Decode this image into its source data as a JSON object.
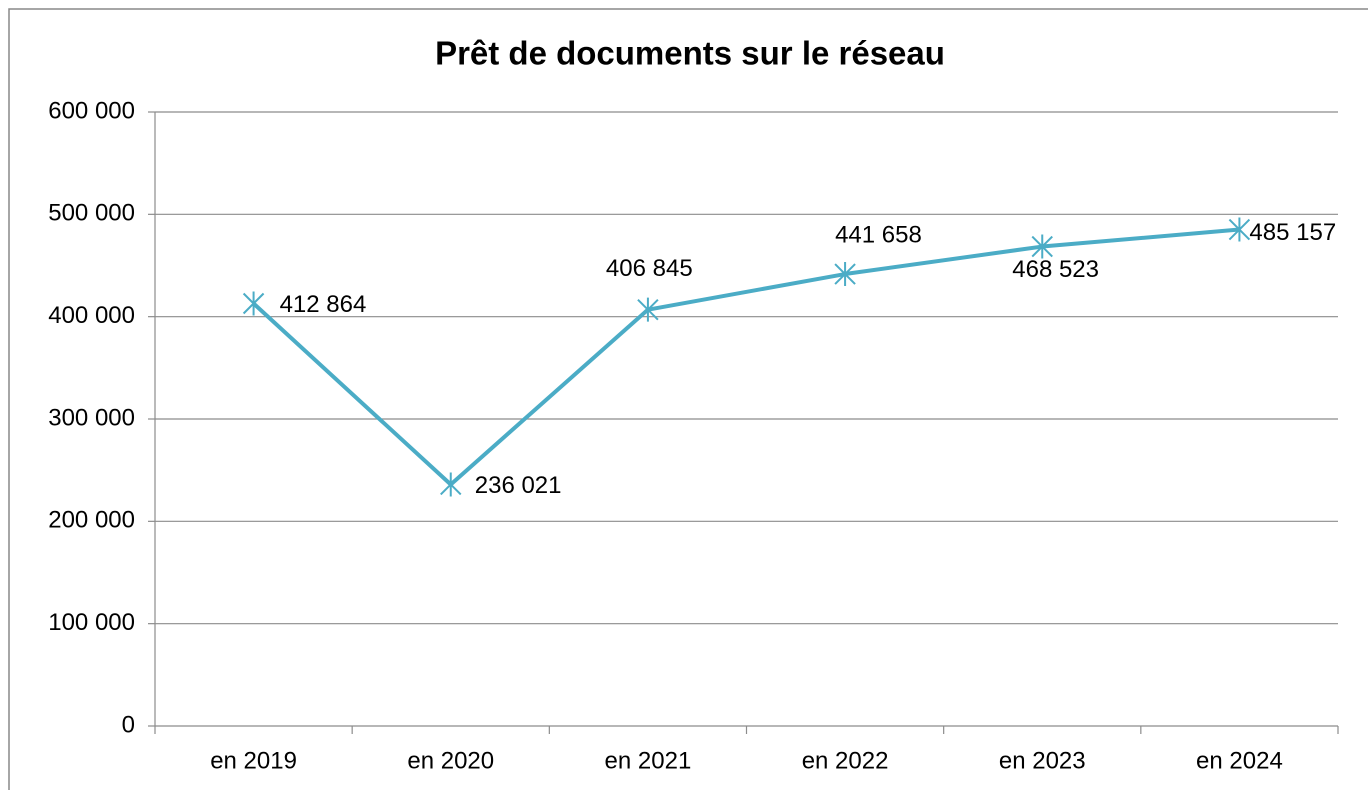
{
  "chart_data": {
    "type": "line",
    "title": "Prêt de documents sur le réseau",
    "categories": [
      "en 2019",
      "en 2020",
      "en 2021",
      "en 2022",
      "en 2023",
      "en 2024"
    ],
    "series": [
      {
        "name": "Prêt de documents",
        "color": "#4bacc6",
        "values": [
          412864,
          236021,
          406845,
          441658,
          468523,
          485157
        ],
        "value_labels": [
          "412 864",
          "236 021",
          "406 845",
          "441 658",
          "468 523",
          "485 157"
        ]
      }
    ],
    "ylim": [
      0,
      600000
    ],
    "yticks": [
      0,
      {
        "value": 100000,
        "label": "100 000"
      },
      {
        "value": 200000,
        "label": "200 000"
      },
      {
        "value": 300000,
        "label": "300 000"
      },
      {
        "value": 400000,
        "label": "400 000"
      },
      {
        "value": 500000,
        "label": "500 000"
      },
      {
        "value": 600000,
        "label": "600 000"
      }
    ],
    "grid": true
  }
}
